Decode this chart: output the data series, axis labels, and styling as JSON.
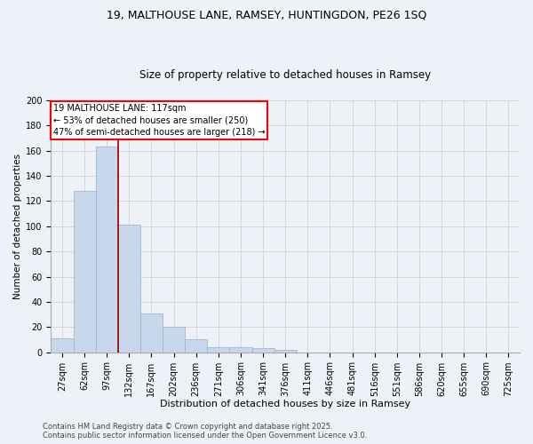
{
  "title_line1": "19, MALTHOUSE LANE, RAMSEY, HUNTINGDON, PE26 1SQ",
  "title_line2": "Size of property relative to detached houses in Ramsey",
  "xlabel": "Distribution of detached houses by size in Ramsey",
  "ylabel": "Number of detached properties",
  "bar_color": "#c8d8ec",
  "bar_edge_color": "#9ab0cc",
  "grid_color": "#cccccc",
  "bg_color": "#eef2f8",
  "vline_color": "#990000",
  "vline_x_index": 2.5,
  "categories": [
    "27sqm",
    "62sqm",
    "97sqm",
    "132sqm",
    "167sqm",
    "202sqm",
    "236sqm",
    "271sqm",
    "306sqm",
    "341sqm",
    "376sqm",
    "411sqm",
    "446sqm",
    "481sqm",
    "516sqm",
    "551sqm",
    "586sqm",
    "620sqm",
    "655sqm",
    "690sqm",
    "725sqm"
  ],
  "values": [
    11,
    128,
    163,
    101,
    31,
    20,
    10,
    4,
    4,
    3,
    2,
    0,
    0,
    0,
    0,
    0,
    0,
    0,
    0,
    0,
    0
  ],
  "annotation_line1": "19 MALTHOUSE LANE: 117sqm",
  "annotation_line2": "← 53% of detached houses are smaller (250)",
  "annotation_line3": "47% of semi-detached houses are larger (218) →",
  "footnote_line1": "Contains HM Land Registry data © Crown copyright and database right 2025.",
  "footnote_line2": "Contains public sector information licensed under the Open Government Licence v3.0.",
  "ylim": [
    0,
    200
  ],
  "yticks": [
    0,
    20,
    40,
    60,
    80,
    100,
    120,
    140,
    160,
    180,
    200
  ],
  "title1_fontsize": 9,
  "title2_fontsize": 8.5,
  "xlabel_fontsize": 8,
  "ylabel_fontsize": 7.5,
  "tick_fontsize": 7,
  "annotation_fontsize": 7,
  "footnote_fontsize": 6
}
